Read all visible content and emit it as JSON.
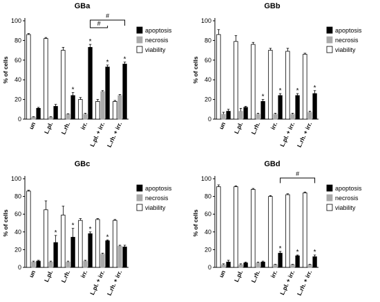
{
  "chart_data": [
    {
      "type": "bar",
      "title": "GBa",
      "ylabel": "% of cells",
      "ylim": [
        0,
        100
      ],
      "yticks": [
        0,
        20,
        40,
        60,
        80,
        100
      ],
      "categories": [
        "un",
        "L.pl.",
        "L.rh.",
        "irr.",
        "L.pl. + irr.",
        "L.rh. + irr."
      ],
      "series": [
        {
          "name": "viability",
          "values": [
            86,
            82,
            70,
            20,
            18,
            18
          ],
          "errors": [
            1,
            1,
            3,
            2,
            2,
            1
          ]
        },
        {
          "name": "necrosis",
          "values": [
            2,
            2,
            5,
            5,
            28,
            24
          ],
          "errors": [
            0.5,
            0.5,
            0.5,
            1,
            1,
            1
          ]
        },
        {
          "name": "apoptosis",
          "values": [
            11,
            13,
            24,
            73,
            53,
            56
          ],
          "errors": [
            1,
            2,
            3,
            3,
            2,
            2
          ]
        }
      ],
      "significance": {
        "apoptosis": [
          false,
          false,
          true,
          true,
          true,
          true
        ]
      },
      "brackets": [
        {
          "from": 3,
          "to": 4,
          "label": "#"
        },
        {
          "from": 3,
          "to": 5,
          "label": "#"
        }
      ],
      "legend": "right"
    },
    {
      "type": "bar",
      "title": "GBb",
      "ylabel": "% of cells",
      "ylim": [
        0,
        100
      ],
      "yticks": [
        0,
        20,
        40,
        60,
        80,
        100
      ],
      "categories": [
        "un",
        "L.pl.",
        "L.rh.",
        "irr.",
        "L.pl. + irr.",
        "L.rh. + irr."
      ],
      "series": [
        {
          "name": "viability",
          "values": [
            86,
            79,
            76,
            70,
            69,
            66
          ],
          "errors": [
            5,
            6,
            2,
            2,
            3,
            1
          ]
        },
        {
          "name": "necrosis",
          "values": [
            5,
            8,
            5,
            5,
            5,
            7
          ],
          "errors": [
            2,
            3,
            1,
            1,
            1,
            1
          ]
        },
        {
          "name": "apoptosis",
          "values": [
            8,
            12,
            18,
            24,
            24,
            26
          ],
          "errors": [
            2,
            1,
            2,
            2,
            2,
            3
          ]
        }
      ],
      "significance": {
        "apoptosis": [
          false,
          false,
          true,
          true,
          true,
          true
        ]
      },
      "brackets": [],
      "legend": "right"
    },
    {
      "type": "bar",
      "title": "GBc",
      "ylabel": "% of cells",
      "ylim": [
        0,
        100
      ],
      "yticks": [
        0,
        20,
        40,
        60,
        80,
        100
      ],
      "categories": [
        "un",
        "L.pl.",
        "L.rh.",
        "irr.",
        "L.pl. + irr.",
        "L.rh. + irr."
      ],
      "series": [
        {
          "name": "viability",
          "values": [
            86,
            65,
            59,
            53,
            54,
            53
          ],
          "errors": [
            1,
            10,
            10,
            2,
            1,
            1
          ]
        },
        {
          "name": "necrosis",
          "values": [
            6,
            6,
            6,
            7,
            15,
            24
          ],
          "errors": [
            1,
            1,
            1,
            1,
            1,
            1
          ]
        },
        {
          "name": "apoptosis",
          "values": [
            7,
            28,
            34,
            38,
            30,
            23
          ],
          "errors": [
            1,
            8,
            10,
            2,
            1,
            2
          ]
        }
      ],
      "significance": {
        "apoptosis": [
          false,
          true,
          true,
          true,
          true,
          false
        ]
      },
      "brackets": [],
      "legend": "right"
    },
    {
      "type": "bar",
      "title": "GBd",
      "ylabel": "% of cells",
      "ylim": [
        0,
        100
      ],
      "yticks": [
        0,
        20,
        40,
        60,
        80,
        100
      ],
      "categories": [
        "un",
        "L.pl.",
        "L.rh.",
        "irr.",
        "L.pl. + irr.",
        "L.rh. + irr."
      ],
      "series": [
        {
          "name": "viability",
          "values": [
            91,
            91,
            88,
            80,
            82,
            84
          ],
          "errors": [
            2,
            1,
            1,
            1,
            1,
            1
          ]
        },
        {
          "name": "necrosis",
          "values": [
            3,
            3,
            5,
            3,
            3,
            3
          ],
          "errors": [
            1,
            1,
            1,
            0.5,
            0.5,
            0.5
          ]
        },
        {
          "name": "apoptosis",
          "values": [
            6,
            5,
            6,
            16,
            13,
            12
          ],
          "errors": [
            2,
            1,
            1,
            2,
            1,
            2
          ]
        }
      ],
      "significance": {
        "apoptosis": [
          false,
          false,
          false,
          true,
          true,
          true
        ]
      },
      "brackets": [
        {
          "from": 3,
          "to": 5,
          "label": "#"
        }
      ],
      "legend": "right"
    }
  ],
  "legend_labels": {
    "apoptosis": "apoptosis",
    "necrosis": "necrosis",
    "viability": "viability"
  },
  "significance_mark": "*",
  "colors": {
    "viability": "#ffffff",
    "necrosis": "#aaaaaa",
    "apoptosis": "#000000",
    "axis": "#000000"
  }
}
